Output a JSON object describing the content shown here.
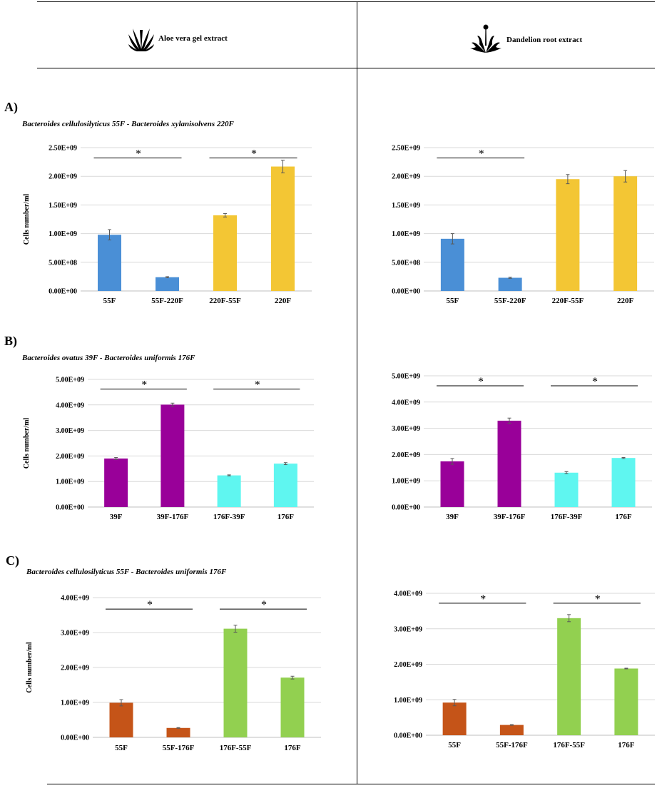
{
  "header": {
    "left_title": "Aloe vera gel extract",
    "right_title": "Dandelion root extract",
    "left_icon": "aloe-plant-icon",
    "right_icon": "dandelion-plant-icon"
  },
  "panels": [
    {
      "letter": "A)",
      "subtitle": "Bacteroides cellulosilyticus 55F - Bacteroides xylanisolvens 220F"
    },
    {
      "letter": "B)",
      "subtitle": "Bacteroides ovatus 39F - Bacteroides uniformis 176F"
    },
    {
      "letter": "C)",
      "subtitle": "Bacteroides cellulosilyticus 55F - Bacteroides uniformis 176F"
    }
  ],
  "chart_data": [
    {
      "id": "A-aloe",
      "type": "bar",
      "ylabel": "Cells number/ml",
      "categories": [
        "55F",
        "55F-220F",
        "220F-55F",
        "220F"
      ],
      "values": [
        980000000,
        240000000,
        1320000000,
        2170000000
      ],
      "errors": [
        90000000,
        10000000,
        30000000,
        110000000
      ],
      "colors": [
        "#4a8fd6",
        "#4a8fd6",
        "#f3c634",
        "#f3c634"
      ],
      "ylim": [
        0,
        2500000000
      ],
      "ticks": [
        0,
        500000000,
        1000000000,
        1500000000,
        2000000000,
        2500000000
      ],
      "tick_labels": [
        "0.00E+00",
        "5.00E+08",
        "1.00E+09",
        "1.50E+09",
        "2.00E+09",
        "2.50E+09"
      ],
      "significance": [
        {
          "from": 0,
          "to": 1,
          "label": "*",
          "level": 2320000000
        },
        {
          "from": 2,
          "to": 3,
          "label": "*",
          "level": 2320000000
        }
      ]
    },
    {
      "id": "A-dandelion",
      "type": "bar",
      "ylabel": "",
      "categories": [
        "55F",
        "55F-220F",
        "220F-55F",
        "220F"
      ],
      "values": [
        910000000,
        230000000,
        1950000000,
        2000000000
      ],
      "errors": [
        90000000,
        10000000,
        80000000,
        100000000
      ],
      "colors": [
        "#4a8fd6",
        "#4a8fd6",
        "#f3c634",
        "#f3c634"
      ],
      "ylim": [
        0,
        2500000000
      ],
      "ticks": [
        0,
        500000000,
        1000000000,
        1500000000,
        2000000000,
        2500000000
      ],
      "tick_labels": [
        "0.00E+00",
        "5.00E+08",
        "1.00E+09",
        "1.50E+09",
        "2.00E+09",
        "2.50E+09"
      ],
      "significance": [
        {
          "from": 0,
          "to": 1,
          "label": "*",
          "level": 2320000000
        }
      ]
    },
    {
      "id": "B-aloe",
      "type": "bar",
      "ylabel": "Cells number/ml",
      "categories": [
        "39F",
        "39F-176F",
        "176F-39F",
        "176F"
      ],
      "values": [
        1900000000,
        4010000000,
        1240000000,
        1700000000
      ],
      "errors": [
        40000000,
        60000000,
        20000000,
        40000000
      ],
      "colors": [
        "#990099",
        "#990099",
        "#5ff6f0",
        "#5ff6f0"
      ],
      "ylim": [
        0,
        5000000000
      ],
      "ticks": [
        0,
        1000000000,
        2000000000,
        3000000000,
        4000000000,
        5000000000
      ],
      "tick_labels": [
        "0.00E+00",
        "1.00E+09",
        "2.00E+09",
        "3.00E+09",
        "4.00E+09",
        "5.00E+09"
      ],
      "significance": [
        {
          "from": 0,
          "to": 1,
          "label": "*",
          "level": 4620000000
        },
        {
          "from": 2,
          "to": 3,
          "label": "*",
          "level": 4620000000
        }
      ]
    },
    {
      "id": "B-dandelion",
      "type": "bar",
      "ylabel": "",
      "categories": [
        "39F",
        "39F-176F",
        "176F-39F",
        "176F"
      ],
      "values": [
        1740000000,
        3290000000,
        1310000000,
        1870000000
      ],
      "errors": [
        110000000,
        100000000,
        40000000,
        20000000
      ],
      "colors": [
        "#990099",
        "#990099",
        "#5ff6f0",
        "#5ff6f0"
      ],
      "ylim": [
        0,
        5000000000
      ],
      "ticks": [
        0,
        1000000000,
        2000000000,
        3000000000,
        4000000000,
        5000000000
      ],
      "tick_labels": [
        "0.00E+00",
        "1.00E+09",
        "2.00E+09",
        "3.00E+09",
        "4.00E+09",
        "5.00E+09"
      ],
      "significance": [
        {
          "from": 0,
          "to": 1,
          "label": "*",
          "level": 4620000000
        },
        {
          "from": 2,
          "to": 3,
          "label": "*",
          "level": 4620000000
        }
      ]
    },
    {
      "id": "C-aloe",
      "type": "bar",
      "ylabel": "Cells number/ml",
      "categories": [
        "55F",
        "55F-176F",
        "176F-55F",
        "176F"
      ],
      "values": [
        990000000,
        270000000,
        3110000000,
        1710000000
      ],
      "errors": [
        90000000,
        10000000,
        100000000,
        40000000
      ],
      "colors": [
        "#c55418",
        "#c55418",
        "#92d050",
        "#92d050"
      ],
      "ylim": [
        0,
        4000000000
      ],
      "ticks": [
        0,
        1000000000,
        2000000000,
        3000000000,
        4000000000
      ],
      "tick_labels": [
        "0.00E+00",
        "1.00E+09",
        "2.00E+09",
        "3.00E+09",
        "4.00E+09"
      ],
      "significance": [
        {
          "from": 0,
          "to": 1,
          "label": "*",
          "level": 3670000000
        },
        {
          "from": 2,
          "to": 3,
          "label": "*",
          "level": 3670000000
        }
      ]
    },
    {
      "id": "C-dandelion",
      "type": "bar",
      "ylabel": "",
      "categories": [
        "55F",
        "55F-176F",
        "176F-55F",
        "176F"
      ],
      "values": [
        920000000,
        290000000,
        3300000000,
        1880000000
      ],
      "errors": [
        90000000,
        10000000,
        100000000,
        10000000
      ],
      "colors": [
        "#c55418",
        "#c55418",
        "#92d050",
        "#92d050"
      ],
      "ylim": [
        0,
        4000000000
      ],
      "ticks": [
        0,
        1000000000,
        2000000000,
        3000000000,
        4000000000
      ],
      "tick_labels": [
        "0.00E+00",
        "1.00E+09",
        "2.00E+09",
        "3.00E+09",
        "4.00E+09"
      ],
      "significance": [
        {
          "from": 0,
          "to": 1,
          "label": "*",
          "level": 3720000000
        },
        {
          "from": 2,
          "to": 3,
          "label": "*",
          "level": 3720000000
        }
      ]
    }
  ]
}
